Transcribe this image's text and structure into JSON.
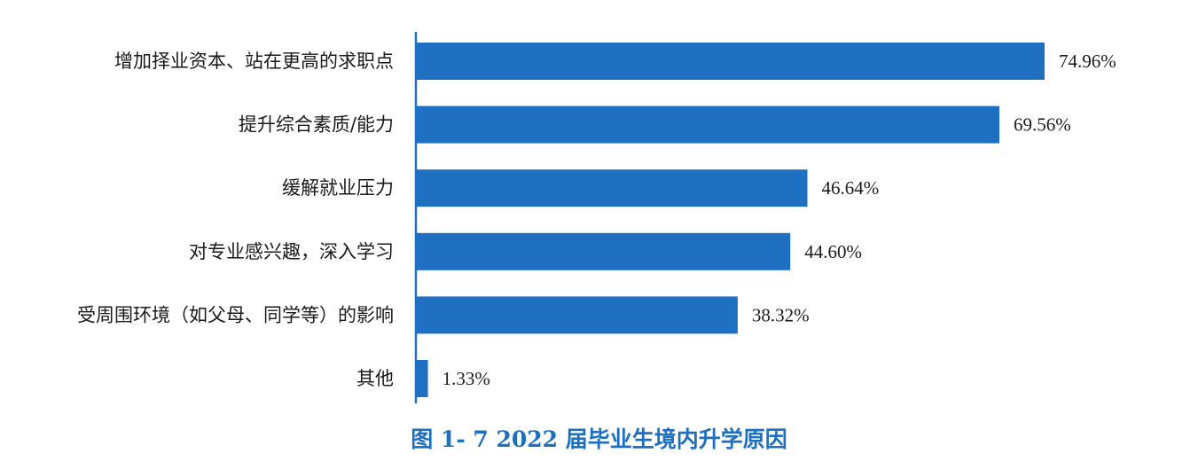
{
  "chart_data": {
    "type": "bar",
    "orientation": "horizontal",
    "title": "图 1- 7  2022 届毕业生境内升学原因",
    "categories": [
      "增加择业资本、站在更高的求职点",
      "提升综合素质/能力",
      "缓解就业压力",
      "对专业感兴趣，深入学习",
      "受周围环境（如父母、同学等）的影响",
      "其他"
    ],
    "values": [
      74.96,
      69.56,
      46.64,
      44.6,
      38.32,
      1.33
    ],
    "value_labels": [
      "74.96%",
      "69.56%",
      "46.64%",
      "44.60%",
      "38.32%",
      "1.33%"
    ],
    "unit": "%",
    "xlim": [
      0,
      100
    ],
    "grid": false,
    "legend": "none",
    "bar_color": "#1f70c1",
    "axis_color": "#1f70c1",
    "title_color": "#1f6fbf"
  }
}
